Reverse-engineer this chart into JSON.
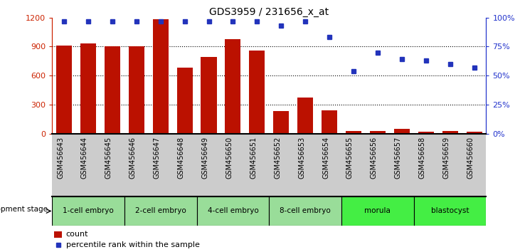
{
  "title": "GDS3959 / 231656_x_at",
  "samples": [
    "GSM456643",
    "GSM456644",
    "GSM456645",
    "GSM456646",
    "GSM456647",
    "GSM456648",
    "GSM456649",
    "GSM456650",
    "GSM456651",
    "GSM456652",
    "GSM456653",
    "GSM456654",
    "GSM456655",
    "GSM456656",
    "GSM456657",
    "GSM456658",
    "GSM456659",
    "GSM456660"
  ],
  "counts": [
    910,
    930,
    900,
    900,
    1180,
    680,
    790,
    980,
    860,
    230,
    370,
    240,
    30,
    30,
    50,
    20,
    30,
    20
  ],
  "percentiles": [
    97,
    97,
    97,
    97,
    97,
    97,
    97,
    97,
    97,
    93,
    97,
    83,
    54,
    70,
    64,
    63,
    60,
    57
  ],
  "stages": [
    {
      "label": "1-cell embryo",
      "start": 0,
      "end": 3,
      "color": "#99dd99"
    },
    {
      "label": "2-cell embryo",
      "start": 3,
      "end": 6,
      "color": "#99dd99"
    },
    {
      "label": "4-cell embryo",
      "start": 6,
      "end": 9,
      "color": "#99dd99"
    },
    {
      "label": "8-cell embryo",
      "start": 9,
      "end": 12,
      "color": "#99dd99"
    },
    {
      "label": "morula",
      "start": 12,
      "end": 15,
      "color": "#44ee44"
    },
    {
      "label": "blastocyst",
      "start": 15,
      "end": 18,
      "color": "#44ee44"
    }
  ],
  "bar_color": "#bb1100",
  "dot_color": "#2233bb",
  "ylim_left": [
    0,
    1200
  ],
  "ylim_right": [
    0,
    100
  ],
  "yticks_left": [
    0,
    300,
    600,
    900,
    1200
  ],
  "yticks_right": [
    0,
    25,
    50,
    75,
    100
  ],
  "ytick_labels_left": [
    "0",
    "300",
    "600",
    "900",
    "1200"
  ],
  "ytick_labels_right": [
    "0%",
    "25%",
    "50%",
    "75%",
    "100%"
  ],
  "left_axis_color": "#cc2200",
  "right_axis_color": "#2233cc",
  "sample_bg_color": "#cccccc",
  "legend_count_label": "count",
  "legend_pct_label": "percentile rank within the sample",
  "dev_stage_label": "development stage"
}
